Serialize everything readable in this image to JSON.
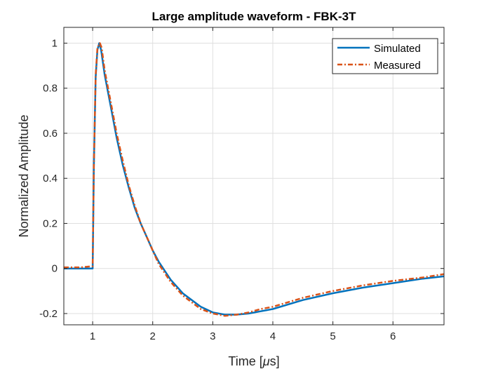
{
  "chart_data": {
    "type": "line",
    "title": "Large amplitude waveform - FBK-3T",
    "xlabel": "Time [",
    "xlabel_unit": "μ",
    "xlabel_suffix": "s]",
    "ylabel": "Normalized Amplitude",
    "xlim": [
      0.52,
      6.85
    ],
    "ylim": [
      -0.25,
      1.07
    ],
    "xticks": [
      1,
      2,
      3,
      4,
      5,
      6
    ],
    "yticks": [
      -0.2,
      0,
      0.2,
      0.4,
      0.6,
      0.8,
      1
    ],
    "ytick_labels": [
      "-0.2",
      "0",
      "0.2",
      "0.4",
      "0.6",
      "0.8",
      "1"
    ],
    "grid": true,
    "legend_position": "top-right",
    "series": [
      {
        "name": "Simulated",
        "color": "#0072BD",
        "style": "solid",
        "x": [
          0.52,
          0.8,
          1.0,
          1.02,
          1.05,
          1.08,
          1.11,
          1.14,
          1.2,
          1.3,
          1.4,
          1.5,
          1.6,
          1.7,
          1.8,
          1.9,
          2.0,
          2.1,
          2.2,
          2.3,
          2.4,
          2.5,
          2.6,
          2.8,
          3.0,
          3.2,
          3.4,
          3.6,
          3.8,
          4.0,
          4.5,
          5.0,
          5.5,
          6.0,
          6.5,
          6.85
        ],
        "y": [
          0.0,
          0.0,
          0.0,
          0.45,
          0.85,
          0.97,
          1.0,
          0.97,
          0.86,
          0.72,
          0.58,
          0.46,
          0.36,
          0.27,
          0.2,
          0.14,
          0.08,
          0.03,
          -0.01,
          -0.05,
          -0.08,
          -0.11,
          -0.13,
          -0.17,
          -0.195,
          -0.205,
          -0.205,
          -0.2,
          -0.19,
          -0.18,
          -0.14,
          -0.11,
          -0.085,
          -0.065,
          -0.045,
          -0.035
        ]
      },
      {
        "name": "Measured",
        "color": "#D95319",
        "style": "dashdot",
        "x": [
          0.52,
          0.8,
          1.0,
          1.02,
          1.05,
          1.08,
          1.12,
          1.15,
          1.2,
          1.3,
          1.4,
          1.5,
          1.6,
          1.7,
          1.8,
          1.9,
          2.0,
          2.1,
          2.2,
          2.3,
          2.4,
          2.5,
          2.6,
          2.8,
          3.0,
          3.2,
          3.4,
          3.6,
          3.8,
          4.0,
          4.5,
          5.0,
          5.5,
          6.0,
          6.5,
          6.85
        ],
        "y": [
          0.005,
          0.005,
          0.01,
          0.45,
          0.86,
          0.98,
          1.0,
          0.98,
          0.88,
          0.74,
          0.6,
          0.48,
          0.37,
          0.28,
          0.2,
          0.14,
          0.08,
          0.02,
          -0.02,
          -0.06,
          -0.09,
          -0.12,
          -0.14,
          -0.18,
          -0.2,
          -0.21,
          -0.205,
          -0.195,
          -0.18,
          -0.17,
          -0.13,
          -0.1,
          -0.075,
          -0.055,
          -0.04,
          -0.025
        ]
      }
    ]
  }
}
